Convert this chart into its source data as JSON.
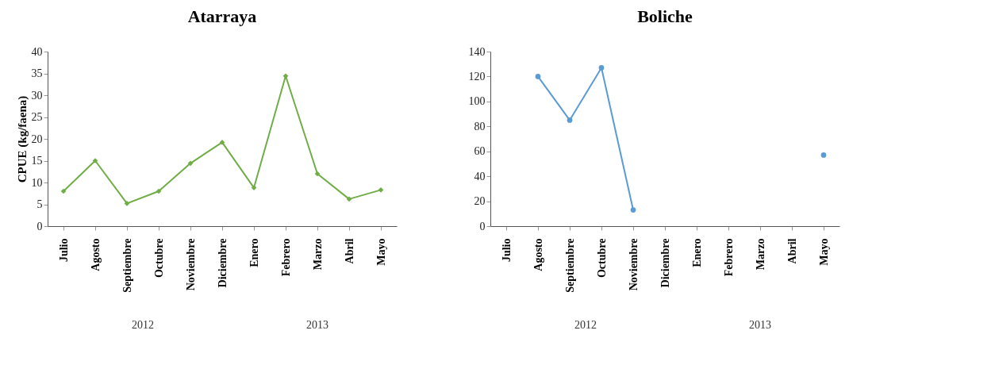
{
  "chart_data": [
    {
      "type": "line",
      "title": "Atarraya",
      "ylabel": "CPUE (kg/faena)",
      "categories": [
        "Julio",
        "Agosto",
        "Septiembre",
        "Octubre",
        "Noviembre",
        "Diciembre",
        "Enero",
        "Febrero",
        "Marzo",
        "Abril",
        "Mayo"
      ],
      "series": [
        {
          "color": "#70ad47",
          "values": [
            8,
            15,
            5.2,
            8,
            14.4,
            19.2,
            8.8,
            34.4,
            12,
            6.2,
            8.3
          ]
        }
      ],
      "ylim": [
        0,
        40
      ],
      "yticks": [
        0,
        5,
        10,
        15,
        20,
        25,
        30,
        35,
        40
      ],
      "marker": "diamond",
      "grid": false,
      "legend": false,
      "annotations": [
        "2012",
        "2013"
      ]
    },
    {
      "type": "line",
      "title": "Boliche",
      "categories": [
        "Julio",
        "Agosto",
        "Septiembre",
        "Octubre",
        "Noviembre",
        "Diciembre",
        "Enero",
        "Febrero",
        "Marzo",
        "Abril",
        "Mayo"
      ],
      "series": [
        {
          "color": "#5b9bd5",
          "values": [
            null,
            120,
            85,
            127,
            13,
            null,
            null,
            null,
            null,
            null,
            57
          ]
        }
      ],
      "ylim": [
        0,
        140
      ],
      "yticks": [
        0,
        20,
        40,
        60,
        80,
        100,
        120,
        140
      ],
      "marker": "circle",
      "grid": false,
      "legend": false,
      "annotations": [
        "2012",
        "2013"
      ]
    }
  ]
}
